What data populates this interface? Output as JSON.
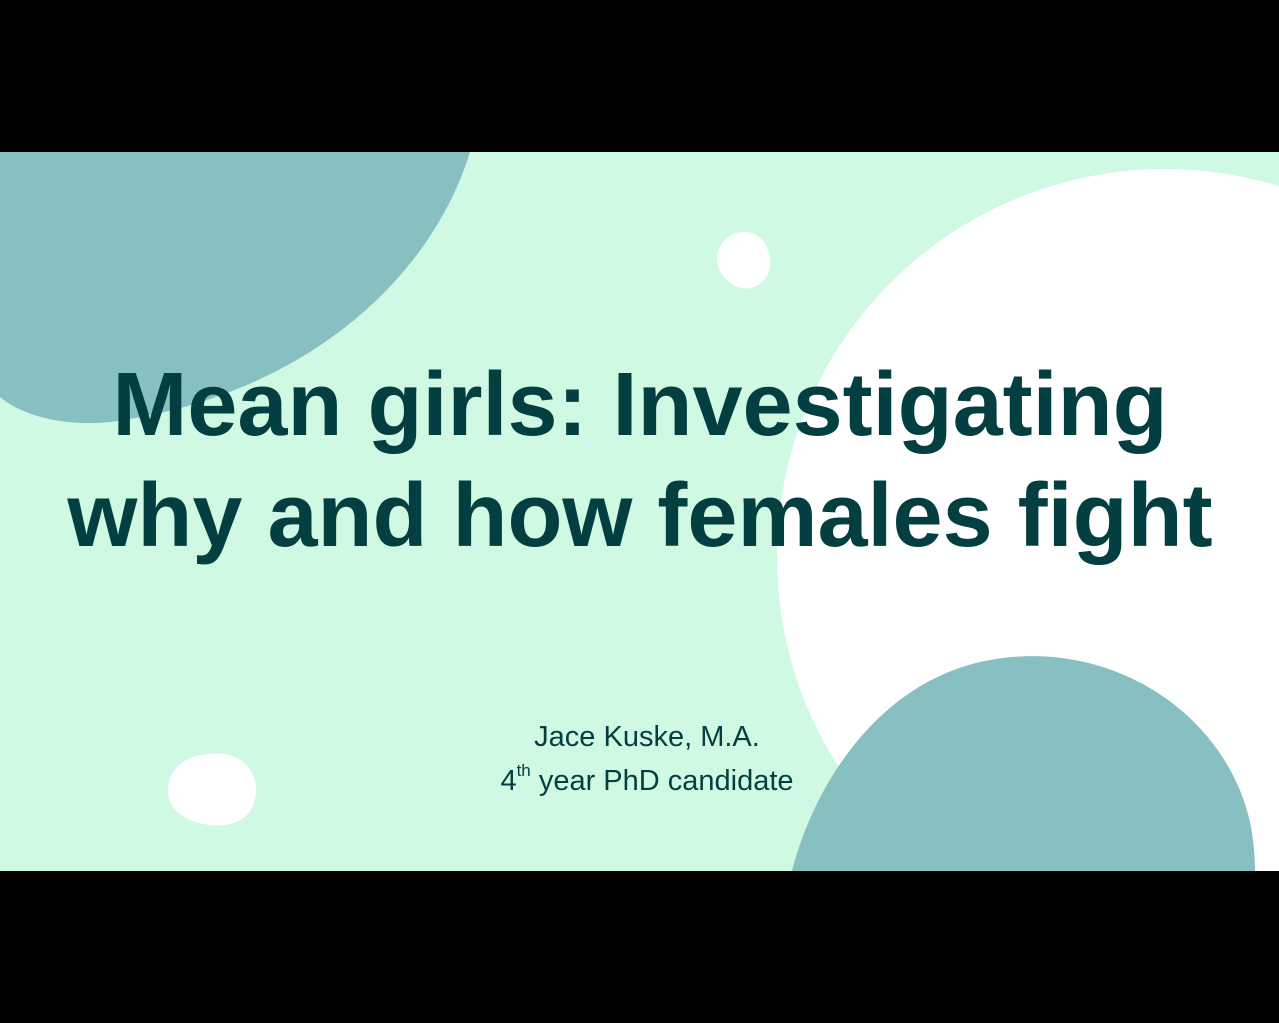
{
  "slide": {
    "title": "Mean girls: Investigating why and how females fight",
    "author": "Jace Kuske, M.A.",
    "role_ordinal": "4",
    "role_ordinal_suffix": "th",
    "role_text": " year PhD candidate"
  },
  "colors": {
    "background": "#d0f9e4",
    "shape_teal": "#88bfc0",
    "shape_white": "#ffffff",
    "text": "#033f40",
    "letterbox": "#000000"
  },
  "icons": {
    "decor_1": "blob-shape",
    "decor_2": "circle-shape"
  }
}
